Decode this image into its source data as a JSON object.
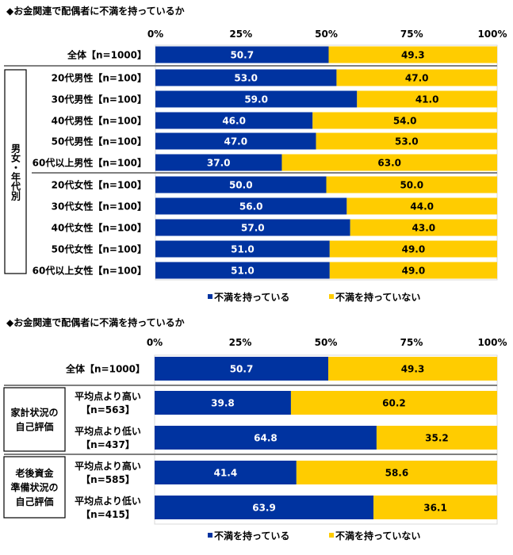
{
  "colors": {
    "dissatisfied": "#0033a0",
    "not_dissatisfied": "#ffcc00"
  },
  "chart_data": [
    {
      "type": "bar",
      "stacked": true,
      "orientation": "horizontal",
      "title": "◆お金関連で配偶者に不満を持っているか",
      "xlim": [
        0,
        100
      ],
      "ticks": [
        "0%",
        "25%",
        "50%",
        "75%",
        "100%"
      ],
      "group_labels": [
        "男女・年代別"
      ],
      "categories": [
        "全体【n=1000】",
        "20代男性【n=100】",
        "30代男性【n=100】",
        "40代男性【n=100】",
        "50代男性【n=100】",
        "60代以上男性【n=100】",
        "20代女性【n=100】",
        "30代女性【n=100】",
        "40代女性【n=100】",
        "50代女性【n=100】",
        "60代以上女性【n=100】"
      ],
      "series": [
        {
          "name": "不満を持っている",
          "values": [
            50.7,
            53.0,
            59.0,
            46.0,
            47.0,
            37.0,
            50.0,
            56.0,
            57.0,
            51.0,
            51.0
          ]
        },
        {
          "name": "不満を持っていない",
          "values": [
            49.3,
            47.0,
            41.0,
            54.0,
            53.0,
            63.0,
            50.0,
            44.0,
            43.0,
            49.0,
            49.0
          ]
        }
      ],
      "legend": "bottom"
    },
    {
      "type": "bar",
      "stacked": true,
      "orientation": "horizontal",
      "title": "◆お金関連で配偶者に不満を持っているか",
      "xlim": [
        0,
        100
      ],
      "ticks": [
        "0%",
        "25%",
        "50%",
        "75%",
        "100%"
      ],
      "group_labels": [
        "家計状況の\n自己評価",
        "老後資金\n準備状況の\n自己評価"
      ],
      "categories": [
        "全体【n=1000】",
        "平均点より高い\n【n=563】",
        "平均点より低い\n【n=437】",
        "平均点より高い\n【n=585】",
        "平均点より低い\n【n=415】"
      ],
      "series": [
        {
          "name": "不満を持っている",
          "values": [
            50.7,
            39.8,
            64.8,
            41.4,
            63.9
          ]
        },
        {
          "name": "不満を持っていない",
          "values": [
            49.3,
            60.2,
            35.2,
            58.6,
            36.1
          ]
        }
      ],
      "legend": "bottom"
    }
  ]
}
